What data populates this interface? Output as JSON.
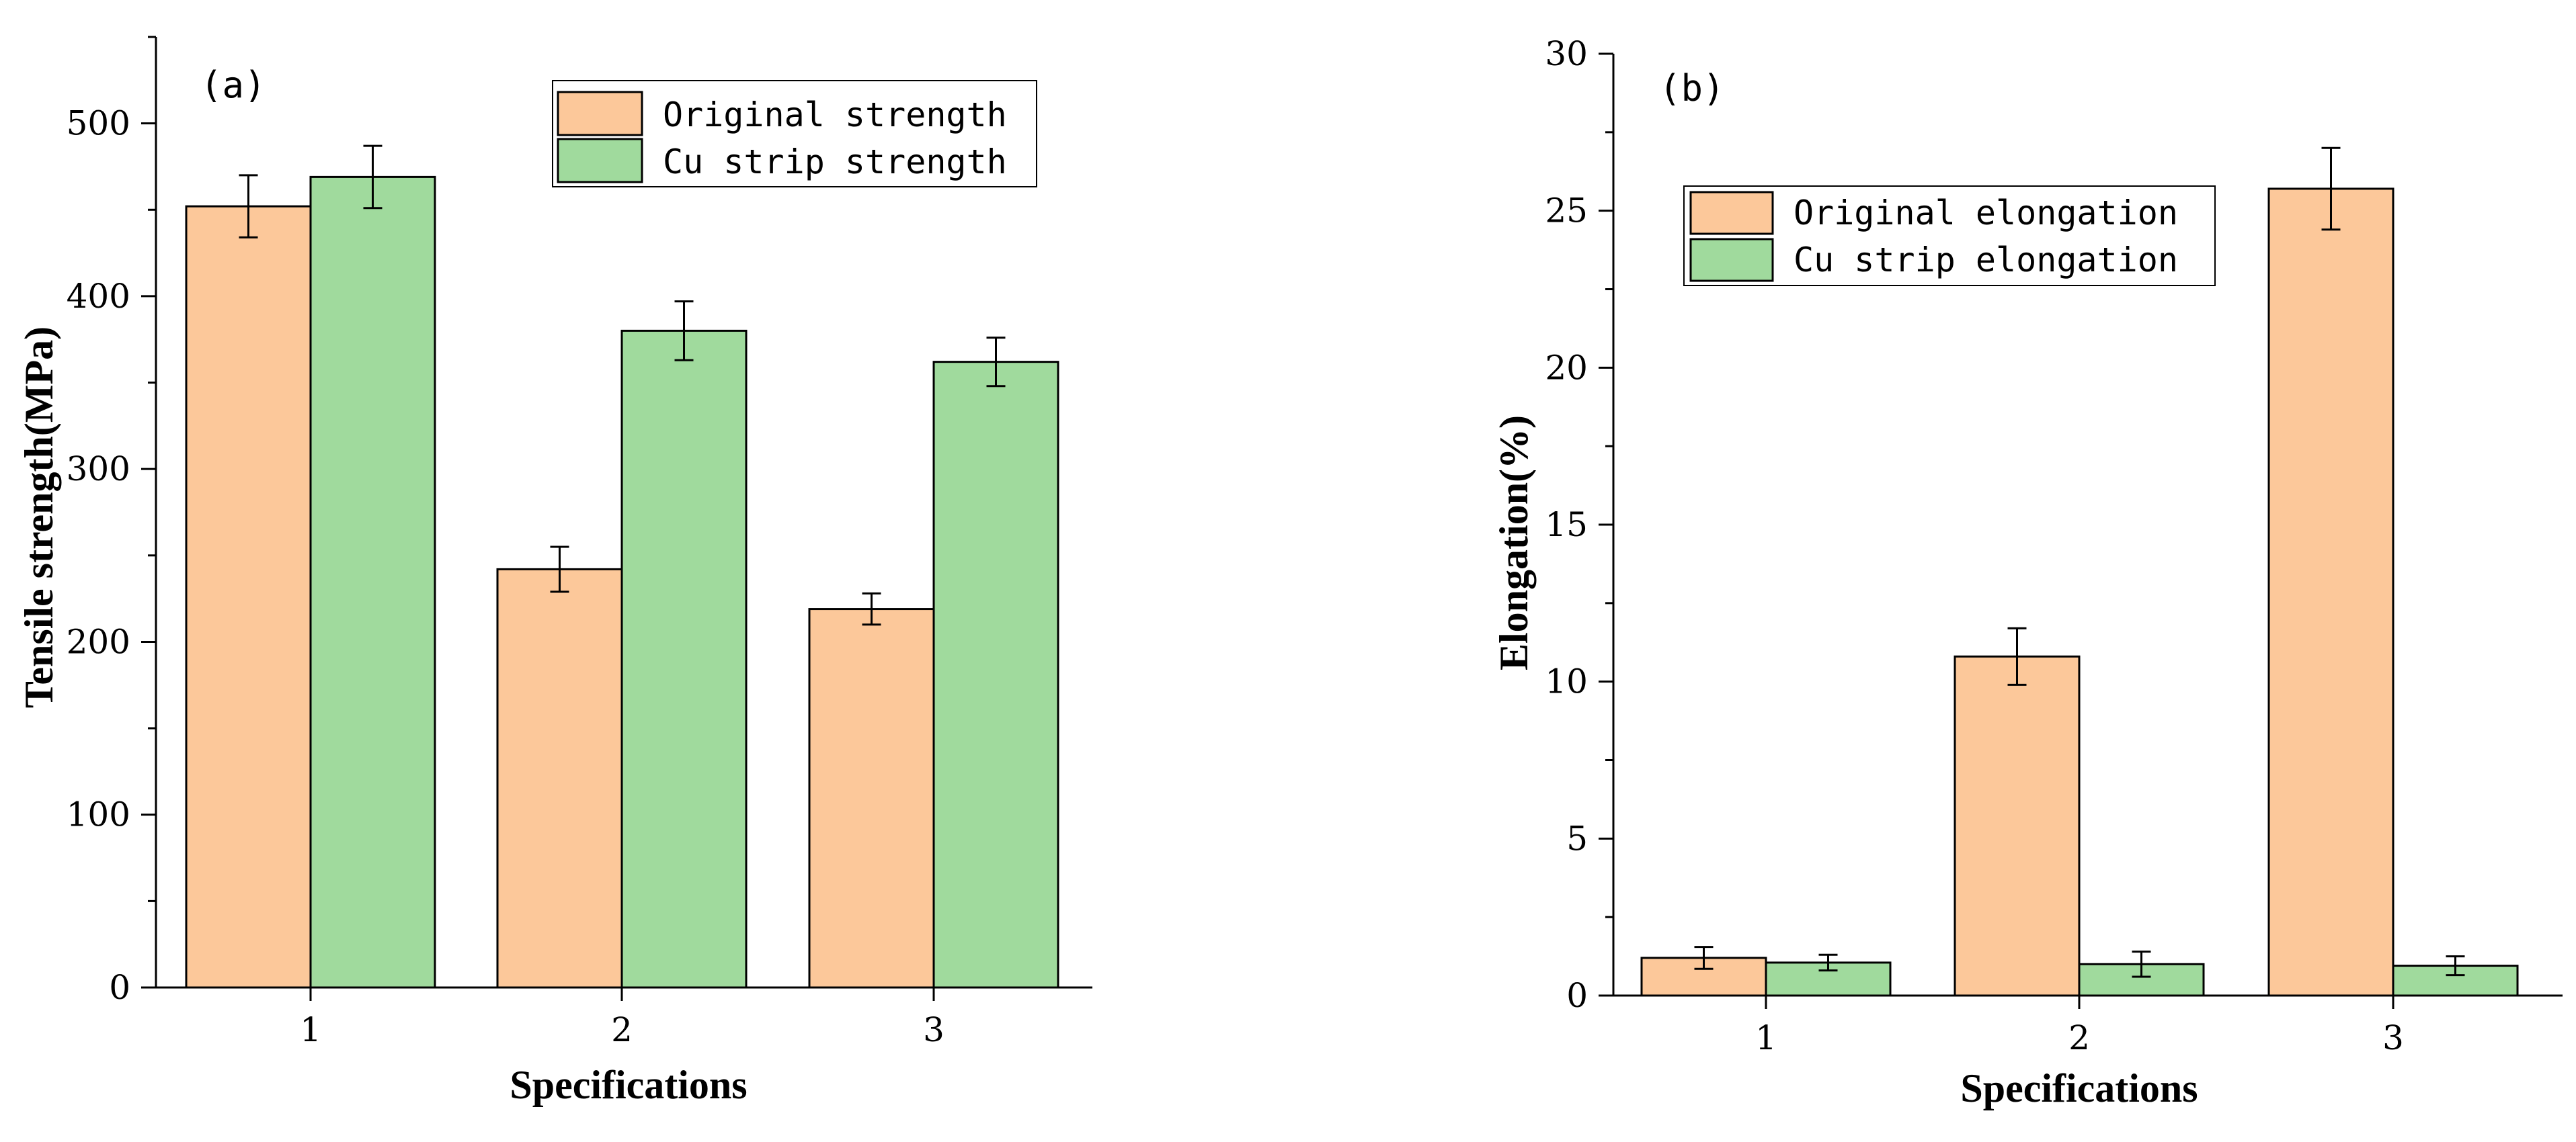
{
  "chart_data": [
    {
      "type": "bar",
      "panel_label": "(a)",
      "categories": [
        "1",
        "2",
        "3"
      ],
      "series": [
        {
          "name": "Original strength",
          "color": "#FCC89A",
          "values": [
            452,
            242,
            219
          ],
          "errors": [
            18,
            13,
            9
          ]
        },
        {
          "name": "Cu strip strength",
          "color": "#A0DA9D",
          "values": [
            469,
            380,
            362
          ],
          "errors": [
            18,
            17,
            14
          ]
        }
      ],
      "xlabel": "Specifications",
      "ylabel": "Tensile strength(MPa)",
      "ylim": [
        0,
        550
      ],
      "yticks": [
        0,
        100,
        200,
        300,
        400,
        500
      ],
      "grid": false,
      "legend": "top-right"
    },
    {
      "type": "bar",
      "panel_label": "(b)",
      "categories": [
        "1",
        "2",
        "3"
      ],
      "series": [
        {
          "name": "Original elongation",
          "color": "#FCC89A",
          "values": [
            1.2,
            10.8,
            25.7
          ],
          "errors": [
            0.35,
            0.9,
            1.3
          ]
        },
        {
          "name": "Cu strip elongation",
          "color": "#A0DA9D",
          "values": [
            1.05,
            1.0,
            0.95
          ],
          "errors": [
            0.25,
            0.4,
            0.3
          ]
        }
      ],
      "xlabel": "Specifications",
      "ylabel": "Elongation(%)",
      "ylim": [
        0,
        30
      ],
      "yticks": [
        0,
        5,
        10,
        15,
        20,
        25,
        30
      ],
      "grid": false,
      "legend": "top-center"
    }
  ]
}
